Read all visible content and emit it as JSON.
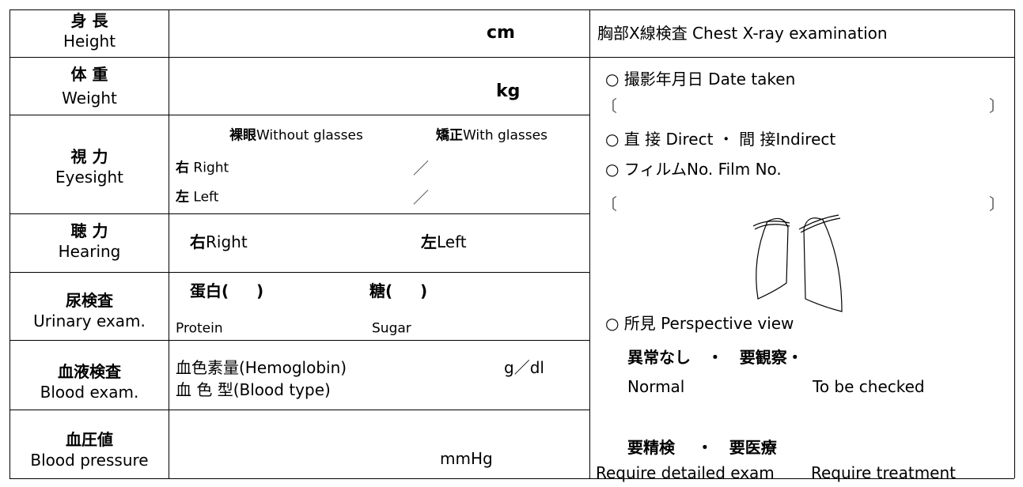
{
  "rows": [
    {
      "ja": "身 長",
      "en": "Height",
      "unit": "cm"
    },
    {
      "ja": "体 重",
      "en": "Weight",
      "unit": "kg"
    },
    {
      "ja": "視 力",
      "en": "Eyesight",
      "columns": [
        {
          "ja": "裸眼",
          "en": "Without glasses"
        },
        {
          "ja": "矯正",
          "en": "With glasses"
        }
      ],
      "lines": [
        {
          "ja": "右",
          "en": "Right",
          "sep": "／"
        },
        {
          "ja": "左",
          "en": "Left",
          "sep": "／"
        }
      ]
    },
    {
      "ja": "聴 力",
      "en": "Hearing",
      "right": {
        "ja": "右",
        "en": "Right"
      },
      "left": {
        "ja": "左",
        "en": "Left"
      }
    },
    {
      "ja": "尿検査",
      "en": "Urinary exam.",
      "items": [
        {
          "ja": "蛋白(     )",
          "en": "Protein"
        },
        {
          "ja": "糖(     )",
          "en": "Sugar"
        }
      ]
    },
    {
      "ja": "血液検査",
      "en": "Blood exam.",
      "hemoglobin": "血色素量(Hemoglobin)",
      "unit": "g／dl",
      "blood_type": "血 色 型(Blood type)"
    },
    {
      "ja": "血圧値",
      "en": "Blood pressure",
      "unit": "mmHg"
    }
  ],
  "xray": {
    "title": "胸部X線検査 Chest X-ray examination",
    "date_taken": "○ 撮影年月日 Date taken",
    "bracket_open": "〔",
    "bracket_close": "〕",
    "method": "○ 直 接 Direct ・ 間 接Indirect",
    "film_no": "○ フィルムNo. Film No.",
    "findings": "○ 所見 Perspective view",
    "options_1": "異常なし   ・   要観察・",
    "normal": "Normal",
    "to_be_checked": "To be checked",
    "options_2": "要精検    ・   要医療",
    "detailed": "Require detailed exam",
    "treatment": "Require treatment"
  }
}
